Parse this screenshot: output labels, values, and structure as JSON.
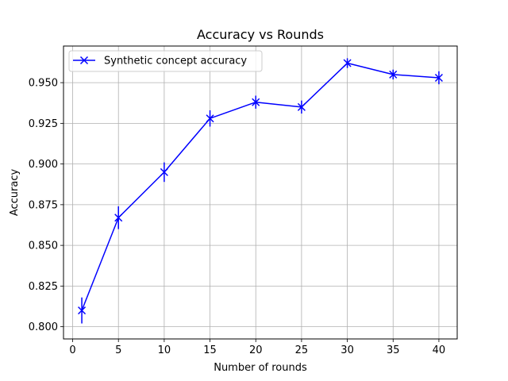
{
  "chart_data": {
    "type": "line",
    "title": "Accuracy vs Rounds",
    "xlabel": "Number of rounds",
    "ylabel": "Accuracy",
    "xlim": [
      -1.0,
      42.0
    ],
    "ylim": [
      0.7925,
      0.9725
    ],
    "xticks": [
      0,
      5,
      10,
      15,
      20,
      25,
      30,
      35,
      40
    ],
    "yticks": [
      0.8,
      0.825,
      0.85,
      0.875,
      0.9,
      0.925,
      0.95
    ],
    "ytick_labels": [
      "0.800",
      "0.825",
      "0.850",
      "0.875",
      "0.900",
      "0.925",
      "0.950"
    ],
    "grid": true,
    "legend_position": "top-left",
    "series": [
      {
        "name": "Synthetic concept accuracy",
        "color": "#0000ff",
        "marker": "x",
        "x": [
          1,
          5,
          10,
          15,
          20,
          25,
          30,
          35,
          40
        ],
        "y": [
          0.81,
          0.867,
          0.895,
          0.928,
          0.938,
          0.935,
          0.962,
          0.955,
          0.953
        ],
        "error": [
          0.008,
          0.007,
          0.006,
          0.005,
          0.004,
          0.004,
          0.003,
          0.003,
          0.004
        ]
      }
    ]
  }
}
